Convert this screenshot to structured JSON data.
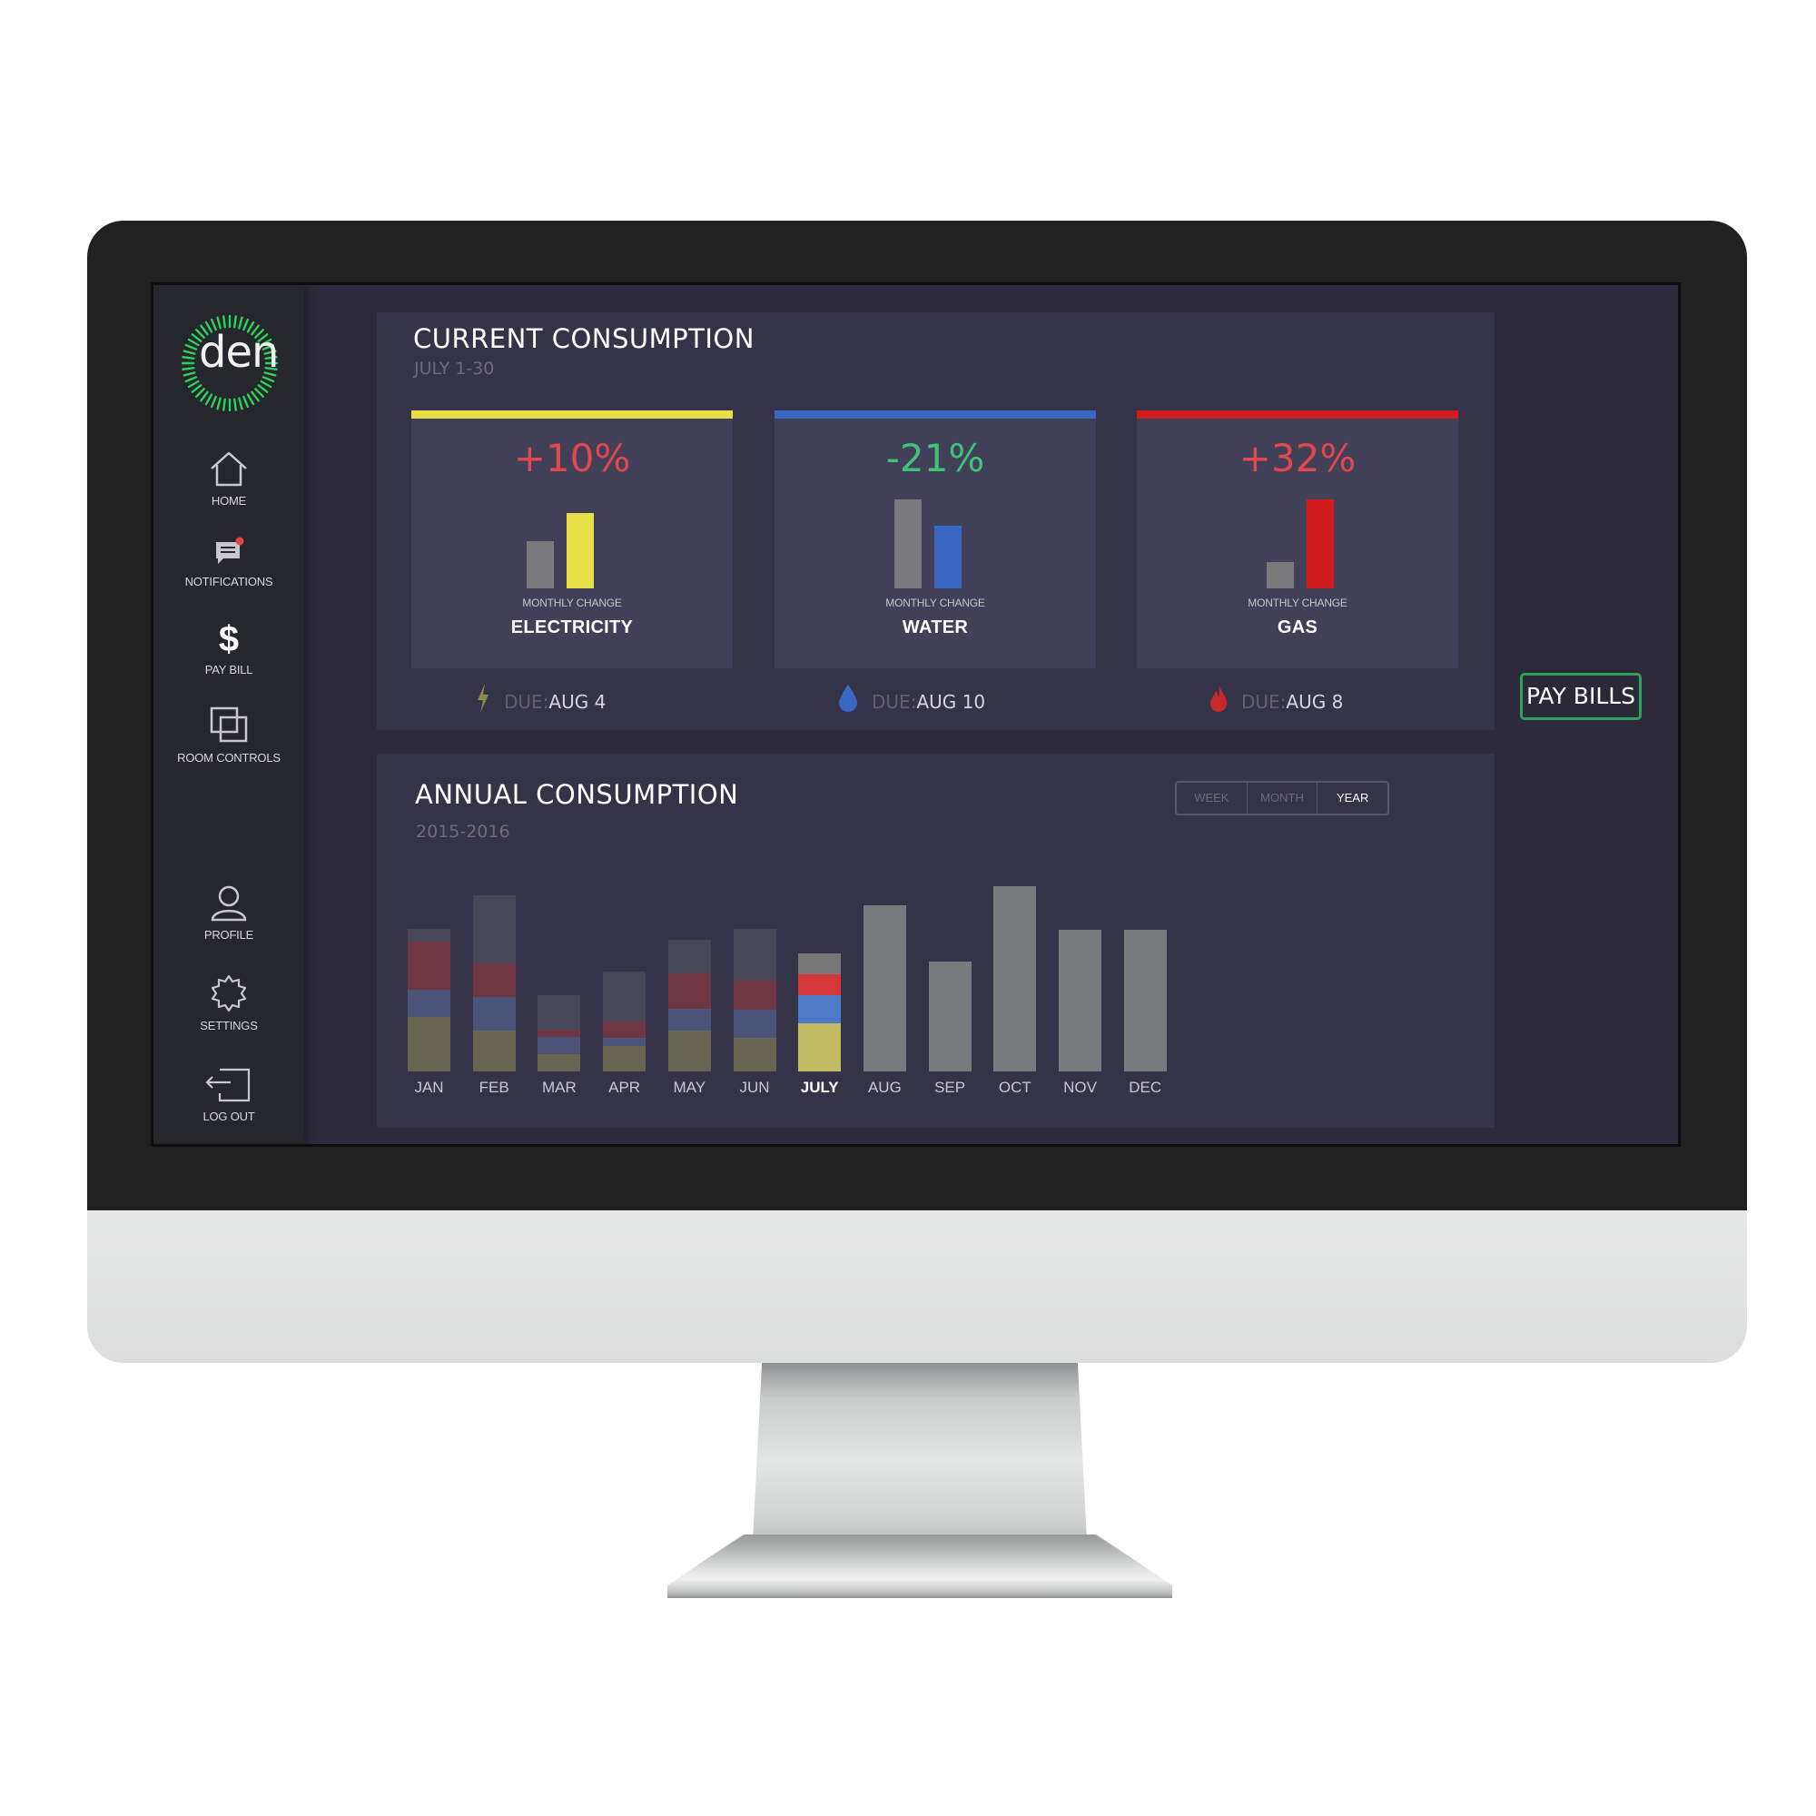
{
  "sidebar": {
    "logo_text": "den",
    "items": [
      {
        "label": "HOME",
        "icon": "home-icon"
      },
      {
        "label": "NOTIFICATIONS",
        "icon": "chat-bubble-icon"
      },
      {
        "label": "PAY BILL",
        "icon": "dollar-icon"
      },
      {
        "label": "ROOM CONTROLS",
        "icon": "layers-icon"
      },
      {
        "label": "PROFILE",
        "icon": "user-icon"
      },
      {
        "label": "SETTINGS",
        "icon": "gear-icon"
      },
      {
        "label": "LOG OUT",
        "icon": "logout-icon"
      }
    ]
  },
  "current": {
    "title": "CURRENT CONSUMPTION",
    "subtitle": "JULY 1-30",
    "monthly_change_label": "MONTHLY CHANGE",
    "due_prefix": "DUE:",
    "utilities": [
      {
        "name": "ELECTRICITY",
        "change": "+10%",
        "change_color": "#e0484d",
        "color": "#e8e047",
        "prev_level": 0.53,
        "curr_level": 0.85,
        "due": "AUG 4",
        "icon": "lightning-icon"
      },
      {
        "name": "WATER",
        "change": "-21%",
        "change_color": "#3ec47a",
        "color": "#3a66c4",
        "prev_level": 1.0,
        "curr_level": 0.7,
        "due": "AUG 10",
        "icon": "water-drop-icon"
      },
      {
        "name": "GAS",
        "change": "+32%",
        "change_color": "#e0484d",
        "color": "#d11c1c",
        "prev_level": 0.3,
        "curr_level": 1.0,
        "due": "AUG 8",
        "icon": "flame-icon"
      }
    ]
  },
  "pay_button": "PAY BILLS",
  "annual": {
    "title": "ANNUAL CONSUMPTION",
    "subtitle": "2015-2016",
    "segments": [
      "WEEK",
      "MONTH",
      "YEAR"
    ],
    "active_segment": "YEAR"
  },
  "chart_data": {
    "type": "bar",
    "stacked": true,
    "categories": [
      "JAN",
      "FEB",
      "MAR",
      "APR",
      "MAY",
      "JUN",
      "JULY",
      "AUG",
      "SEP",
      "OCT",
      "NOV",
      "DEC"
    ],
    "current_month": "JULY",
    "series": [
      {
        "color": "#67644f",
        "values": [
          57,
          43,
          18,
          27,
          43,
          35,
          50,
          0,
          0,
          0,
          0,
          0
        ]
      },
      {
        "color": "#4b5478",
        "values": [
          29,
          35,
          18,
          8,
          23,
          30,
          30,
          0,
          0,
          0,
          0,
          0
        ]
      },
      {
        "color": "#6e3542",
        "values": [
          50,
          35,
          8,
          17,
          37,
          30,
          22,
          0,
          0,
          0,
          0,
          0
        ]
      },
      {
        "color": "#474656",
        "values": [
          14,
          72,
          36,
          53,
          35,
          55,
          22,
          0,
          0,
          0,
          0,
          0
        ]
      },
      {
        "color": "#787b7e",
        "values": [
          0,
          0,
          0,
          0,
          0,
          0,
          0,
          174,
          115,
          194,
          149,
          149
        ]
      }
    ],
    "current_colors": [
      "#c2bb63",
      "#4d79c9",
      "#d43639",
      "#767677"
    ],
    "ylim": [
      0,
      200
    ]
  }
}
